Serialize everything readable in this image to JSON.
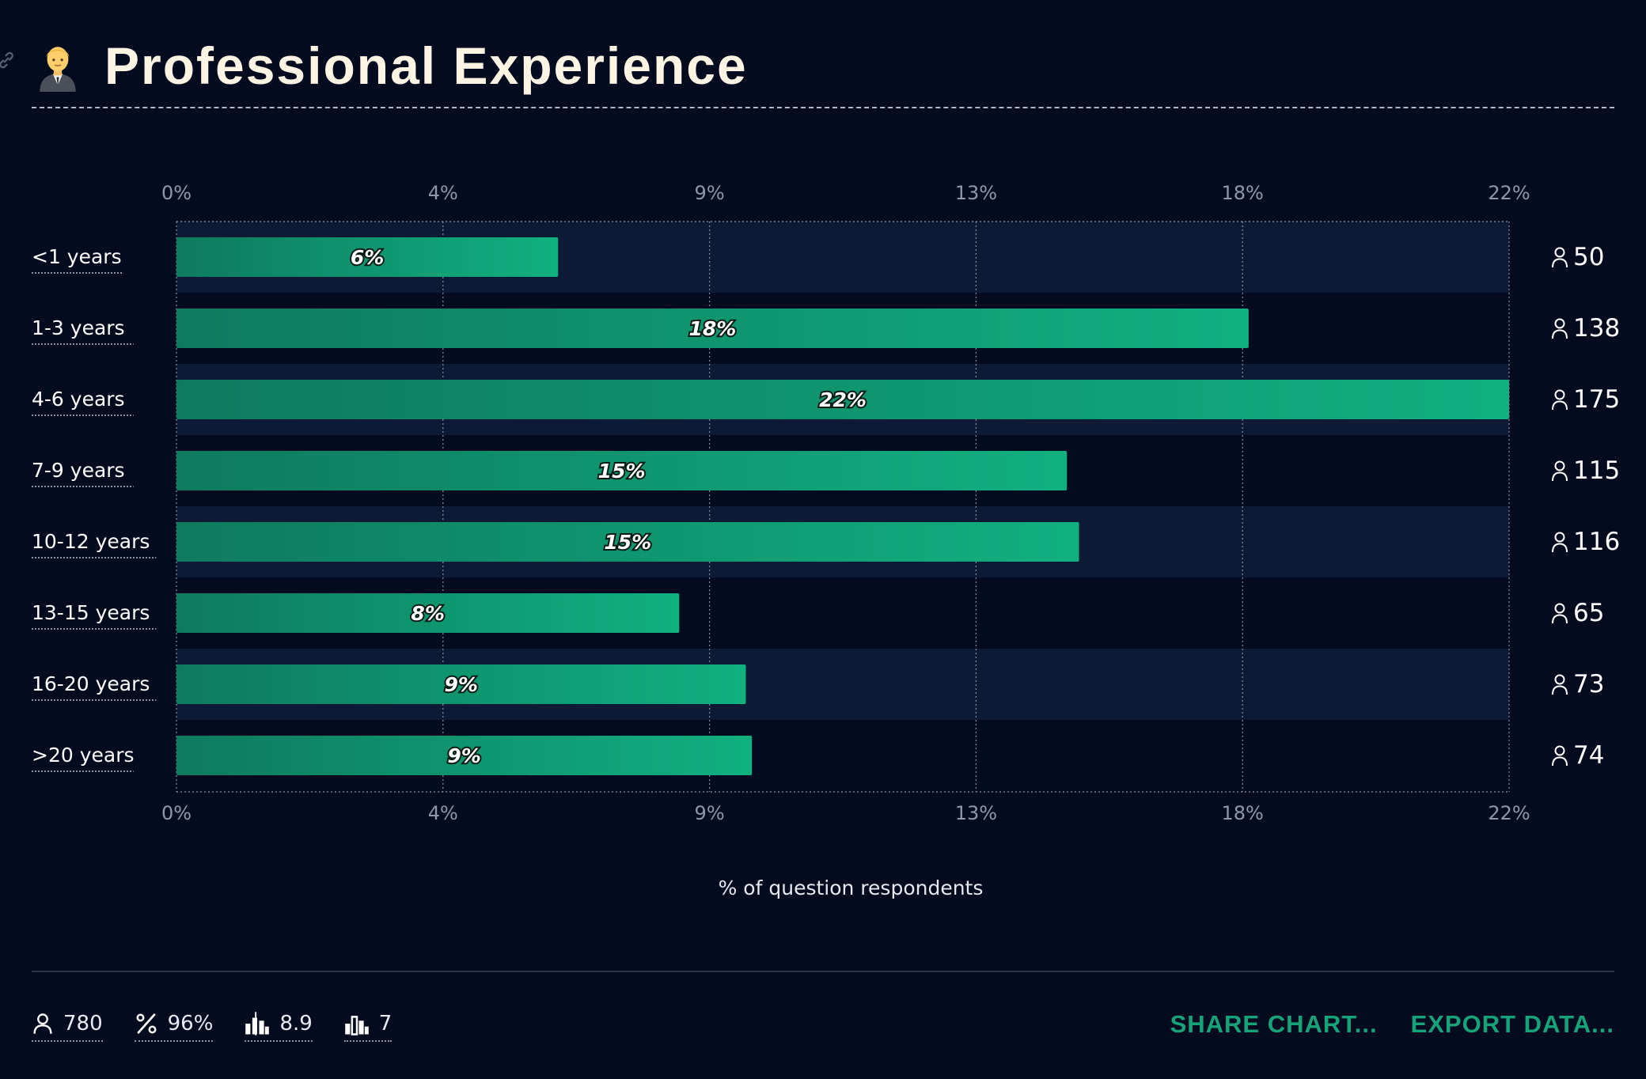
{
  "header": {
    "title": "Professional Experience",
    "emoji_icon": "person-in-suit-emoji-icon",
    "link_icon": "link-icon"
  },
  "colors": {
    "background": "#050b1f",
    "band": "#0d1a35",
    "bar_start": "#0e7a5e",
    "bar_end": "#10b07f",
    "accent": "#16a37a",
    "tick_text": "#8f97ab"
  },
  "chart_data": {
    "type": "bar",
    "orientation": "horizontal",
    "title": "Professional Experience",
    "xlabel": "% of question respondents",
    "ylabel": "",
    "xlim": [
      0,
      22
    ],
    "x_ticks": [
      0,
      4.4,
      8.8,
      13.2,
      17.6,
      22
    ],
    "x_tick_labels": [
      "0%",
      "4%",
      "9%",
      "13%",
      "18%",
      "22%"
    ],
    "grid": true,
    "categories": [
      "<1 years",
      "1-3 years",
      "4-6 years",
      "7-9 years",
      "10-12 years",
      "13-15 years",
      "16-20 years",
      ">20 years"
    ],
    "values": [
      6.3,
      17.7,
      22.4,
      14.7,
      14.9,
      8.3,
      9.4,
      9.5
    ],
    "value_labels": [
      "6%",
      "18%",
      "22%",
      "15%",
      "15%",
      "8%",
      "9%",
      "9%"
    ],
    "counts": [
      "50",
      "138",
      "175",
      "115",
      "116",
      "65",
      "73",
      "74"
    ],
    "count_icon": "user-icon"
  },
  "footer": {
    "stats": [
      {
        "icon": "user-icon",
        "value": "780"
      },
      {
        "icon": "percent-icon",
        "value": "96%"
      },
      {
        "icon": "average-chart-icon",
        "value": "8.9"
      },
      {
        "icon": "median-chart-icon",
        "value": "7"
      }
    ],
    "actions": [
      {
        "label": "SHARE CHART..."
      },
      {
        "label": "EXPORT DATA..."
      }
    ]
  }
}
